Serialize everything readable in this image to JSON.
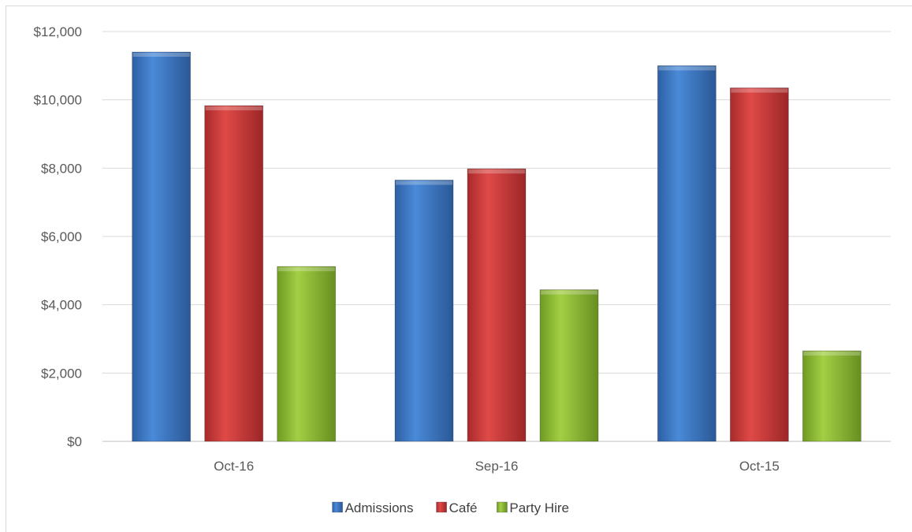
{
  "chart_data": {
    "type": "bar",
    "categories": [
      "Oct-16",
      "Sep-16",
      "Oct-15"
    ],
    "series": [
      {
        "name": "Admissions",
        "values": [
          11400,
          7650,
          11000
        ],
        "color": "#3b78c8"
      },
      {
        "name": "Café",
        "values": [
          9830,
          7980,
          10350
        ],
        "color": "#cc3a3a"
      },
      {
        "name": "Party Hire",
        "values": [
          5120,
          4440,
          2650
        ],
        "color": "#8cbd2e"
      }
    ],
    "y_ticks": [
      "$0",
      "$2,000",
      "$4,000",
      "$6,000",
      "$8,000",
      "$10,000",
      "$12,000"
    ],
    "ylim": [
      0,
      12000
    ],
    "title": "",
    "xlabel": "",
    "ylabel": "",
    "grid": true,
    "legend": "bottom"
  }
}
